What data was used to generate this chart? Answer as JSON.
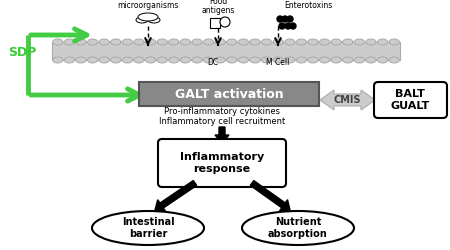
{
  "bg_color": "#ffffff",
  "sdp_label": "SDP",
  "sdp_color": "#33cc33",
  "microorganisms_label": "microorganisms",
  "food_antigens_label": "Food\nantigens",
  "enterotoxins_label": "Enterotoxins",
  "dc_label": "DC",
  "mcell_label": "M Cell",
  "galt_label": "GALT activation",
  "galt_bg": "#888888",
  "pro_inflam_label": "Pro-inflammatory cytokines",
  "inflam_cell_label": "Inflammatory cell recruitment",
  "cmis_label": "CMIS",
  "balt_label": "BALT\nGUALT",
  "inflam_resp_label": "Inflammatory\nresponse",
  "intestinal_label": "Intestinal\nbarrier",
  "nutrient_label": "Nutrient\nabsorption",
  "green_arrow_color": "#44cc44",
  "epithelium_color": "#cccccc",
  "cmis_arrow_color": "#cccccc"
}
